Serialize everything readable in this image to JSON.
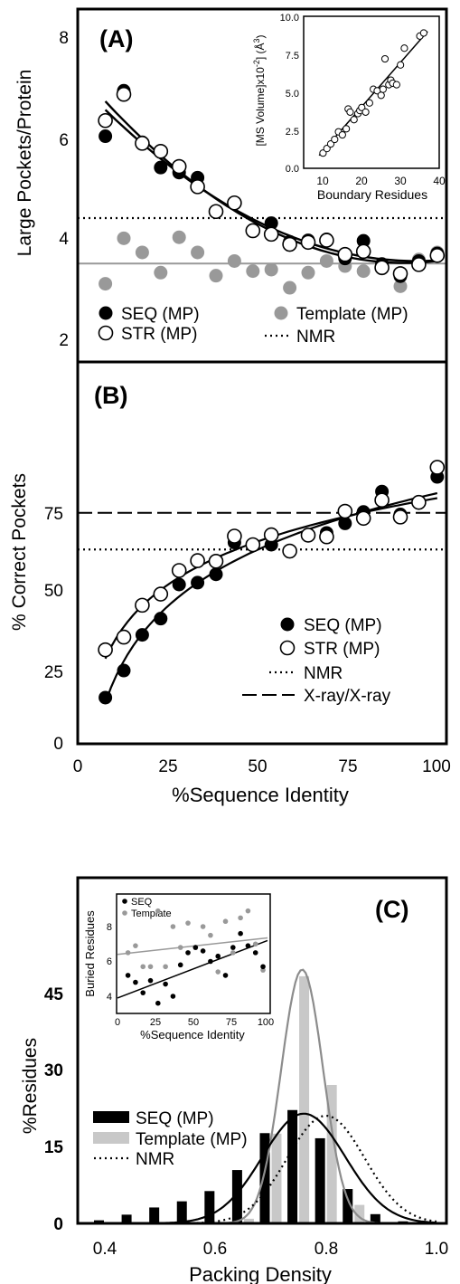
{
  "panels": {
    "A": {
      "label": "(A)",
      "ylabel": "Large Pockets/Protein",
      "yticks": [
        "2",
        "4",
        "6",
        "8"
      ],
      "legend": {
        "seq": "SEQ (MP)",
        "str": "STR (MP)",
        "template": "Template (MP)",
        "nmr": "NMR"
      }
    },
    "A_inset": {
      "ylabel": "[MS Volume]x10",
      "ylabel_sup": "-2",
      "ylabel_unit": "] (Å",
      "ylabel_unit_sup": "3",
      "ylabel_close": ")",
      "xlabel": "Boundary Residues",
      "xticks": [
        "10",
        "20",
        "30",
        "40"
      ],
      "yticks": [
        "0.0",
        "2.5",
        "5.0",
        "7.5",
        "10.0"
      ]
    },
    "B": {
      "label": "(B)",
      "ylabel": "% Correct Pockets",
      "yticks": [
        "0",
        "25",
        "50",
        "75"
      ],
      "xlabel": "%Sequence Identity",
      "xticks": [
        "0",
        "25",
        "50",
        "75",
        "100"
      ],
      "legend": {
        "seq": "SEQ (MP)",
        "str": "STR (MP)",
        "nmr": "NMR",
        "xray": "X-ray/X-ray"
      }
    },
    "C": {
      "label": "(C)",
      "ylabel": "%Residues",
      "yticks": [
        "0",
        "15",
        "30",
        "45"
      ],
      "xlabel": "Packing Density",
      "xticks": [
        "0.4",
        "0.6",
        "0.8",
        "1.0"
      ],
      "legend": {
        "seq": "SEQ (MP)",
        "template": "Template (MP)",
        "nmr": "NMR"
      }
    },
    "C_inset": {
      "ylabel": "Buried Residues",
      "xlabel": "%Sequence Identity",
      "xticks": [
        "0",
        "25",
        "50",
        "75",
        "100"
      ],
      "yticks": [
        "4",
        "6",
        "8"
      ],
      "legend": {
        "seq": "SEQ",
        "template": "Template"
      }
    }
  },
  "colors": {
    "black": "#000000",
    "gray": "#999999",
    "lightgray": "#c8c8c8"
  },
  "chart_data": [
    {
      "panel": "A",
      "type": "scatter",
      "xlim": [
        0,
        100
      ],
      "ylim": [
        1.5,
        8.5
      ],
      "series": [
        {
          "name": "SEQ (MP)",
          "x": [
            7.5,
            12.5,
            17.5,
            22.5,
            27.5,
            32.5,
            37.5,
            42.5,
            47.5,
            52.5,
            57.5,
            62.5,
            67.5,
            72.5,
            77.5,
            82.5,
            87.5,
            92.5,
            97.5
          ],
          "y": [
            6.02,
            6.92,
            5.9,
            5.4,
            5.3,
            5.2,
            4.52,
            4.7,
            4.16,
            4.3,
            3.93,
            3.96,
            3.98,
            3.6,
            3.95,
            3.49,
            3.25,
            3.55,
            3.7
          ]
        },
        {
          "name": "STR (MP)",
          "x": [
            7.5,
            12.5,
            17.5,
            22.5,
            27.5,
            32.5,
            37.5,
            42.5,
            47.5,
            52.5,
            57.5,
            62.5,
            67.5,
            72.5,
            77.5,
            82.5,
            87.5,
            92.5,
            97.5
          ],
          "y": [
            6.33,
            6.85,
            5.88,
            5.72,
            5.42,
            5.02,
            4.53,
            4.7,
            4.15,
            4.08,
            3.88,
            3.92,
            3.96,
            3.68,
            3.74,
            3.42,
            3.3,
            3.48,
            3.66
          ]
        },
        {
          "name": "Template (MP)",
          "x": [
            7.5,
            12.5,
            17.5,
            22.5,
            27.5,
            32.5,
            37.5,
            42.5,
            47.5,
            52.5,
            57.5,
            62.5,
            67.5,
            72.5,
            77.5,
            82.5,
            87.5,
            92.5,
            97.5
          ],
          "y": [
            3.1,
            4.0,
            3.72,
            3.32,
            4.02,
            3.72,
            3.26,
            3.55,
            3.35,
            3.38,
            3.02,
            3.32,
            3.55,
            3.45,
            3.35,
            3.4,
            3.05,
            3.58,
            3.72
          ]
        },
        {
          "name": "NMR",
          "y_const": 4.4
        }
      ],
      "template_mean": 3.5
    },
    {
      "panel": "A_inset",
      "type": "scatter",
      "xlabel": "Boundary Residues",
      "xlim": [
        5,
        40
      ],
      "ylim": [
        0,
        10
      ],
      "x": [
        10,
        11,
        12,
        13,
        14,
        15,
        16,
        16.5,
        17,
        18,
        19,
        19.5,
        20,
        21,
        22,
        23,
        24,
        25,
        25.5,
        26,
        27,
        27.5,
        28,
        29,
        30,
        31,
        35,
        36
      ],
      "y": [
        1.0,
        1.3,
        1.6,
        1.9,
        2.4,
        2.2,
        2.6,
        3.9,
        3.7,
        3.2,
        3.6,
        3.8,
        4.0,
        3.7,
        4.3,
        5.2,
        5.1,
        4.8,
        5.2,
        7.2,
        5.5,
        5.8,
        5.6,
        5.5,
        6.8,
        7.9,
        8.7,
        8.9
      ],
      "fit_line": [
        [
          9,
          0.85
        ],
        [
          37,
          9.0
        ]
      ]
    },
    {
      "panel": "B",
      "type": "scatter",
      "xlabel": "%Sequence Identity",
      "xlim": [
        0,
        100
      ],
      "ylim": [
        0,
        90
      ],
      "series": [
        {
          "name": "SEQ (MP)",
          "x": [
            7.5,
            12.5,
            17.5,
            22.5,
            27.5,
            32.5,
            37.5,
            42.5,
            47.5,
            52.5,
            57.5,
            62.5,
            67.5,
            72.5,
            77.5,
            82.5,
            87.5,
            92.5,
            97.5
          ],
          "y": [
            14.5,
            23,
            34.2,
            39.3,
            50,
            50.6,
            53.2,
            63.2,
            62.5,
            62.5,
            60.5,
            65.5,
            66.2,
            69.2,
            72.8,
            79.2,
            72,
            75.8,
            83.8
          ]
        },
        {
          "name": "STR (MP)",
          "x": [
            7.5,
            12.5,
            17.5,
            22.5,
            27.5,
            32.5,
            37.5,
            42.5,
            47.5,
            52.5,
            57.5,
            62.5,
            67.5,
            72.5,
            77.5,
            82.5,
            87.5,
            92.5,
            97.5
          ],
          "y": [
            29.5,
            33.5,
            43.5,
            47,
            54.4,
            57.5,
            57.3,
            65.2,
            62.5,
            65.6,
            60.5,
            65.5,
            65,
            73,
            70.8,
            76.5,
            71.2,
            75.8,
            86.8
          ]
        },
        {
          "name": "NMR",
          "y_const": 61
        },
        {
          "name": "X-ray/X-ray",
          "y_const": 72.5
        }
      ]
    },
    {
      "panel": "C",
      "type": "bar",
      "xlabel": "Packing Density",
      "xlim": [
        0.35,
        1.0
      ],
      "ylim": [
        0,
        52
      ],
      "bin_centers": [
        0.4,
        0.45,
        0.5,
        0.55,
        0.6,
        0.65,
        0.7,
        0.75,
        0.8,
        0.85,
        0.9,
        0.95
      ],
      "series": [
        {
          "name": "SEQ (MP)",
          "values": [
            0.6,
            1.7,
            3.1,
            4.3,
            6.3,
            10.4,
            17.6,
            22.1,
            16.6,
            6.7,
            1.8,
            0.4
          ]
        },
        {
          "name": "Template (MP)",
          "values": [
            0,
            0,
            0,
            0,
            0,
            0.9,
            17.5,
            48.2,
            27,
            3.6,
            0,
            0
          ]
        },
        {
          "name": "NMR",
          "mean": 0.8,
          "sd": 0.07,
          "peak": 21.0
        }
      ],
      "seq_fit": {
        "mean": 0.76,
        "sd": 0.075,
        "peak": 21.4
      },
      "template_fit": {
        "mean": 0.757,
        "sd": 0.038,
        "peak": 49.5
      }
    },
    {
      "panel": "C_inset",
      "type": "scatter",
      "xlabel": "%Sequence Identity",
      "xlim": [
        0,
        100
      ],
      "ylim": [
        3.3,
        9.5
      ],
      "series": [
        {
          "name": "SEQ",
          "x": [
            7,
            12,
            17,
            22,
            27,
            32,
            37,
            42,
            47,
            52,
            57,
            62,
            67,
            72,
            77,
            82,
            87,
            92,
            97
          ],
          "y": [
            5.2,
            4.8,
            4.2,
            4.9,
            3.6,
            4.7,
            4.0,
            5.8,
            6.5,
            6.8,
            6.6,
            6.0,
            6.3,
            5.2,
            6.8,
            7.6,
            6.9,
            6.5,
            5.7
          ]
        },
        {
          "name": "Template",
          "x": [
            7,
            12,
            17,
            22,
            27,
            32,
            37,
            42,
            47,
            52,
            57,
            62,
            67,
            72,
            77,
            82,
            87,
            92,
            97
          ],
          "y": [
            6.5,
            6.9,
            5.7,
            5.7,
            8.9,
            5.7,
            8.0,
            6.8,
            8.2,
            6.8,
            8.0,
            7.5,
            5.4,
            8.3,
            6.5,
            8.5,
            8.9,
            7.0,
            5.5
          ]
        }
      ],
      "seq_fit": [
        [
          0,
          3.9
        ],
        [
          100,
          7.2
        ]
      ],
      "template_fit": [
        [
          0,
          6.4
        ],
        [
          100,
          7.35
        ]
      ]
    }
  ]
}
